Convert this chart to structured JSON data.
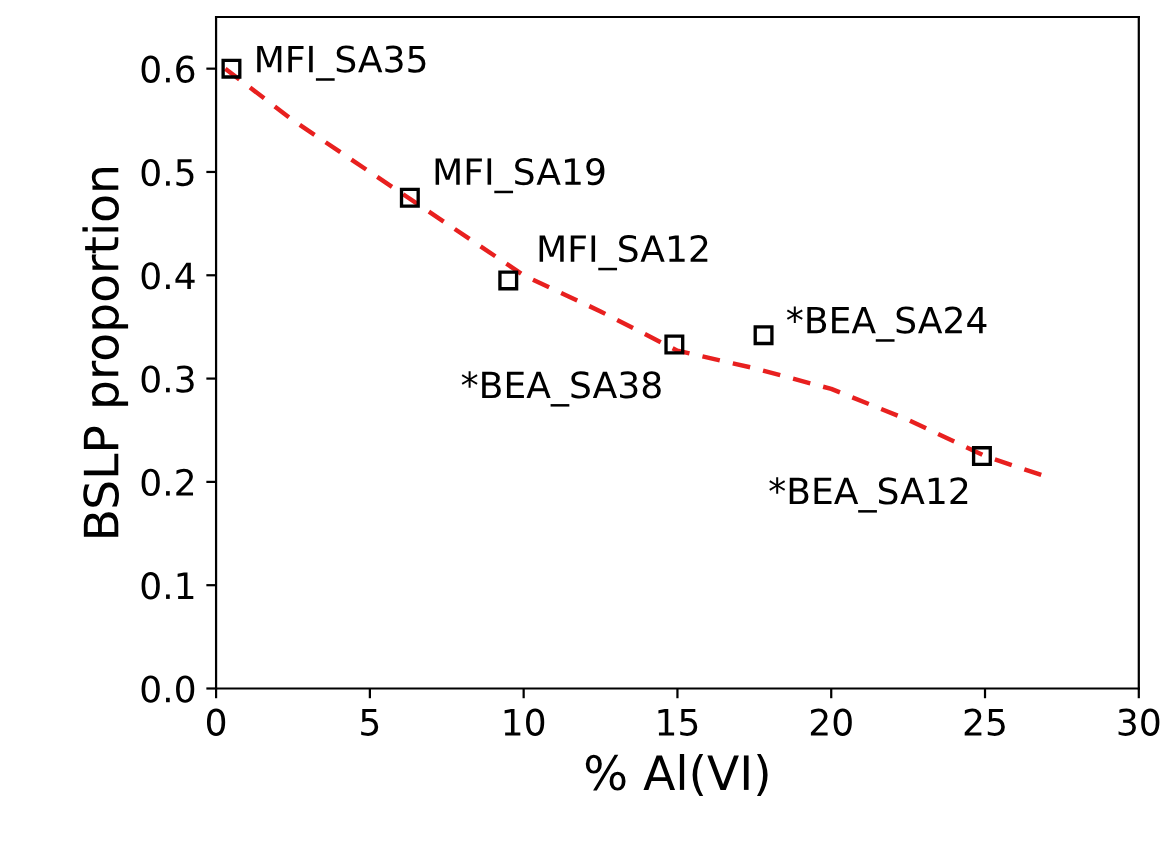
{
  "chart_data": {
    "type": "scatter",
    "xlabel": "% Al(VI)",
    "ylabel": "BSLP proportion",
    "xlim": [
      0,
      30
    ],
    "ylim": [
      0,
      0.65
    ],
    "xticks": [
      0,
      5,
      10,
      15,
      20,
      25,
      30
    ],
    "yticks": [
      {
        "value": 0,
        "label": "0.0"
      },
      0.1,
      0.2,
      0.3,
      0.4,
      0.5,
      0.6
    ],
    "grid": false,
    "legend": false,
    "marker": "square",
    "series": [
      {
        "color": "#000000",
        "x": [
          0.5,
          6.3,
          9.5,
          14.9,
          17.8,
          24.9
        ],
        "values": [
          0.6,
          0.475,
          0.395,
          0.333,
          0.342,
          0.225
        ]
      },
      {
        "type": "line",
        "color": "#e8201f",
        "line_style": "dashed",
        "marker": "none",
        "x": [
          0.3,
          2.5,
          5,
          7.5,
          10,
          12.5,
          15,
          17.5,
          20,
          22.5,
          25,
          27
        ],
        "values": [
          0.6,
          0.55,
          0.5,
          0.45,
          0.4,
          0.365,
          0.327,
          0.31,
          0.29,
          0.26,
          0.225,
          0.205
        ]
      }
    ],
    "annotations": [
      {
        "text": "MFI_SA35",
        "x": 0.5,
        "y": 0.6
      },
      {
        "text": "MFI_SA19",
        "x": 6.3,
        "y": 0.475
      },
      {
        "text": "MFI_SA12",
        "x": 9.5,
        "y": 0.395
      },
      {
        "text": "*BEA_SA38",
        "x": 14.9,
        "y": 0.333
      },
      {
        "text": "*BEA_SA24",
        "x": 17.8,
        "y": 0.342
      },
      {
        "text": "*BEA_SA12",
        "x": 24.9,
        "y": 0.225
      }
    ]
  }
}
